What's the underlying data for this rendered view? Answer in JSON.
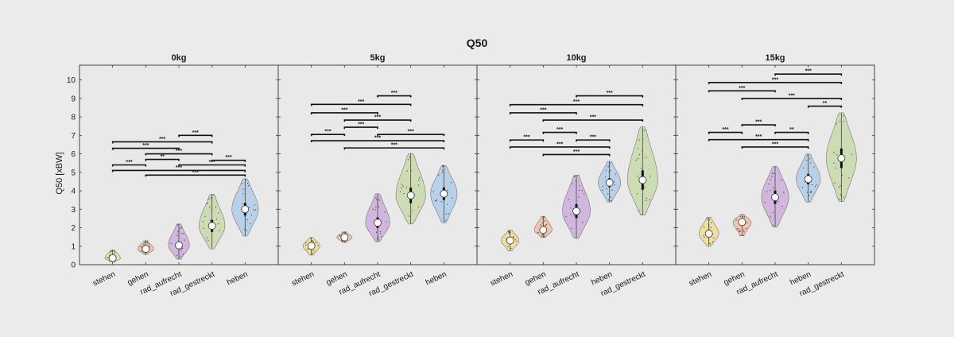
{
  "chart_data": {
    "type": "violin",
    "title": "Q50",
    "ylabel": "Q50 [xBW]",
    "ylim": [
      0,
      10.8
    ],
    "yticks": [
      0,
      1,
      2,
      3,
      4,
      5,
      6,
      7,
      8,
      9,
      10
    ],
    "grid": false,
    "colors": {
      "stehen": "#efd98a",
      "gehen": "#f1b798",
      "rad_aufrecht": "#c8a5d8",
      "rad_gestreckt": "#c4d7a0",
      "heben": "#a8c7e8"
    },
    "panels": [
      {
        "title": "0kg",
        "categories": [
          "stehen",
          "gehen",
          "rad_aufrecht",
          "rad_gestreckt",
          "heben"
        ],
        "violins": [
          {
            "min": 0.15,
            "max": 0.8,
            "median": 0.35
          },
          {
            "min": 0.55,
            "max": 1.3,
            "median": 0.85
          },
          {
            "min": 0.3,
            "max": 2.2,
            "median": 1.05
          },
          {
            "min": 0.85,
            "max": 3.8,
            "median": 2.1
          },
          {
            "min": 1.55,
            "max": 4.65,
            "median": 3.0
          }
        ],
        "significance": [
          {
            "pair": [
              3,
              4
            ],
            "y": 7.0,
            "label": "***"
          },
          {
            "pair": [
              1,
              4
            ],
            "y": 6.65,
            "label": "***"
          },
          {
            "pair": [
              1,
              3
            ],
            "y": 6.3,
            "label": "***"
          },
          {
            "pair": [
              2,
              4
            ],
            "y": 6.0,
            "label": "***"
          },
          {
            "pair": [
              2,
              3
            ],
            "y": 5.7,
            "label": "**"
          },
          {
            "pair": [
              1,
              2
            ],
            "y": 5.4,
            "label": "***"
          },
          {
            "pair": [
              4,
              5
            ],
            "y": 5.65,
            "label": "***"
          },
          {
            "pair": [
              3,
              5
            ],
            "y": 5.4,
            "label": "***"
          },
          {
            "pair": [
              1,
              5
            ],
            "y": 5.1,
            "label": "***"
          },
          {
            "pair": [
              2,
              5
            ],
            "y": 4.85,
            "label": "***"
          }
        ]
      },
      {
        "title": "5kg",
        "categories": [
          "stehen",
          "gehen",
          "rad_aufrecht",
          "rad_gestreckt",
          "heben"
        ],
        "violins": [
          {
            "min": 0.52,
            "max": 1.47,
            "median": 1.02
          },
          {
            "min": 1.2,
            "max": 1.78,
            "median": 1.48
          },
          {
            "min": 1.24,
            "max": 3.84,
            "median": 2.27
          },
          {
            "min": 2.2,
            "max": 6.02,
            "median": 3.75
          },
          {
            "min": 2.27,
            "max": 5.37,
            "median": 3.84
          }
        ],
        "significance": [
          {
            "pair": [
              3,
              4
            ],
            "y": 9.14,
            "label": "***"
          },
          {
            "pair": [
              1,
              4
            ],
            "y": 8.68,
            "label": "***"
          },
          {
            "pair": [
              1,
              3
            ],
            "y": 8.22,
            "label": "***"
          },
          {
            "pair": [
              2,
              4
            ],
            "y": 7.83,
            "label": "***"
          },
          {
            "pair": [
              2,
              3
            ],
            "y": 7.44,
            "label": "***"
          },
          {
            "pair": [
              1,
              2
            ],
            "y": 7.05,
            "label": "***"
          },
          {
            "pair": [
              3,
              5
            ],
            "y": 7.05,
            "label": "***"
          },
          {
            "pair": [
              1,
              5
            ],
            "y": 6.71,
            "label": "***"
          },
          {
            "pair": [
              2,
              5
            ],
            "y": 6.32,
            "label": "***"
          }
        ]
      },
      {
        "title": "10kg",
        "categories": [
          "stehen",
          "gehen",
          "rad_aufrecht",
          "heben",
          "rad_gestreckt"
        ],
        "violins": [
          {
            "min": 0.75,
            "max": 1.87,
            "median": 1.31
          },
          {
            "min": 1.47,
            "max": 2.6,
            "median": 1.88
          },
          {
            "min": 1.42,
            "max": 4.84,
            "median": 2.9
          },
          {
            "min": 3.39,
            "max": 5.59,
            "median": 4.44
          },
          {
            "min": 2.69,
            "max": 7.46,
            "median": 4.58
          }
        ],
        "significance": [
          {
            "pair": [
              3,
              5
            ],
            "y": 9.14,
            "label": "***"
          },
          {
            "pair": [
              1,
              5
            ],
            "y": 8.66,
            "label": "***"
          },
          {
            "pair": [
              1,
              3
            ],
            "y": 8.22,
            "label": "***"
          },
          {
            "pair": [
              2,
              5
            ],
            "y": 7.83,
            "label": "***"
          },
          {
            "pair": [
              2,
              3
            ],
            "y": 7.16,
            "label": "***"
          },
          {
            "pair": [
              1,
              2
            ],
            "y": 6.75,
            "label": "***"
          },
          {
            "pair": [
              3,
              4
            ],
            "y": 6.75,
            "label": "***"
          },
          {
            "pair": [
              1,
              4
            ],
            "y": 6.37,
            "label": "***"
          },
          {
            "pair": [
              2,
              4
            ],
            "y": 5.96,
            "label": "***"
          }
        ]
      },
      {
        "title": "15kg",
        "categories": [
          "stehen",
          "gehen",
          "rad_aufrecht",
          "heben",
          "rad_gestreckt"
        ],
        "violins": [
          {
            "min": 0.99,
            "max": 2.57,
            "median": 1.68
          },
          {
            "min": 1.56,
            "max": 2.72,
            "median": 2.31
          },
          {
            "min": 2.04,
            "max": 5.33,
            "median": 3.65
          },
          {
            "min": 3.39,
            "max": 5.99,
            "median": 4.63
          },
          {
            "min": 3.42,
            "max": 8.22,
            "median": 5.76
          }
        ],
        "significance": [
          {
            "pair": [
              3,
              5
            ],
            "y": 10.32,
            "label": "***"
          },
          {
            "pair": [
              1,
              5
            ],
            "y": 9.86,
            "label": "***"
          },
          {
            "pair": [
              1,
              3
            ],
            "y": 9.41,
            "label": "***"
          },
          {
            "pair": [
              2,
              5
            ],
            "y": 9.0,
            "label": "***"
          },
          {
            "pair": [
              4,
              5
            ],
            "y": 8.58,
            "label": "**"
          },
          {
            "pair": [
              2,
              3
            ],
            "y": 7.57,
            "label": "***"
          },
          {
            "pair": [
              1,
              2
            ],
            "y": 7.16,
            "label": "***"
          },
          {
            "pair": [
              3,
              4
            ],
            "y": 7.16,
            "label": "**"
          },
          {
            "pair": [
              1,
              4
            ],
            "y": 6.77,
            "label": "***"
          },
          {
            "pair": [
              2,
              4
            ],
            "y": 6.37,
            "label": "***"
          }
        ]
      }
    ]
  }
}
